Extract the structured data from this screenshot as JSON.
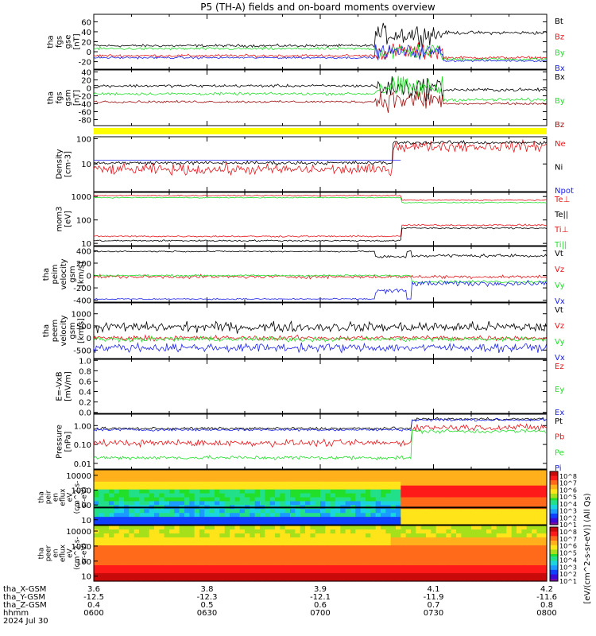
{
  "title": "P5 (TH-A) fields and on-board moments overview",
  "colors": {
    "black": "#000000",
    "red": "#e8141a",
    "green": "#22e02a",
    "blue": "#1a22e8",
    "yellow": "#ffff00",
    "darkred": "#a01010"
  },
  "chart_data": [
    {
      "type": "line",
      "panel": "fgs_gse",
      "ylabel": [
        "tha",
        "fgs",
        "gse",
        "[nT]"
      ],
      "ylim": [
        -35,
        75
      ],
      "ticks": [
        60,
        40,
        20,
        0,
        -20
      ],
      "series": [
        {
          "name": "Bt",
          "color": "black"
        },
        {
          "name": "Bz",
          "color": "red"
        },
        {
          "name": "By",
          "color": "green"
        },
        {
          "name": "Bx",
          "color": "blue"
        }
      ]
    },
    {
      "type": "line",
      "panel": "fgs_gsm",
      "ylabel": [
        "tha",
        "fgs",
        "gsm",
        "[nT]"
      ],
      "ylim": [
        -95,
        45
      ],
      "ticks": [
        40,
        20,
        0,
        -20,
        -40,
        -60,
        -80
      ],
      "series": [
        {
          "name": "Bx",
          "color": "black"
        },
        {
          "name": "By",
          "color": "green"
        },
        {
          "name": "Bz",
          "color": "darkred"
        }
      ]
    },
    {
      "type": "line",
      "panel": "density",
      "ylabel": [
        "Density",
        "[cm-3]"
      ],
      "log": true,
      "ylim": [
        0.8,
        120
      ],
      "ticks": [
        "100",
        "10"
      ],
      "series": [
        {
          "name": "Ne",
          "color": "red"
        },
        {
          "name": "Ni",
          "color": "black"
        },
        {
          "name": "Npot",
          "color": "blue"
        }
      ]
    },
    {
      "type": "line",
      "panel": "temperature",
      "ylabel": [
        "mom3",
        "[eV]"
      ],
      "log": true,
      "ylim": [
        8,
        1500
      ],
      "ticks": [
        "1000",
        "100",
        "10"
      ],
      "series": [
        {
          "name": "Te⊥",
          "color": "red"
        },
        {
          "name": "Te||",
          "color": "black"
        },
        {
          "name": "Ti⊥",
          "color": "red"
        },
        {
          "name": "Ti||",
          "color": "green"
        }
      ]
    },
    {
      "type": "line",
      "panel": "peim_velocity",
      "ylabel": [
        "tha",
        "peim",
        "velocity",
        "gsm",
        "[km/s]"
      ],
      "ylim": [
        -430,
        470
      ],
      "ticks": [
        400,
        200,
        0,
        -200,
        -400
      ],
      "series": [
        {
          "name": "Vt",
          "color": "black"
        },
        {
          "name": "Vz",
          "color": "red"
        },
        {
          "name": "Vy",
          "color": "green"
        },
        {
          "name": "Vx",
          "color": "blue"
        }
      ]
    },
    {
      "type": "line",
      "panel": "peem_velocity",
      "ylabel": [
        "tha",
        "peem",
        "velocity",
        "gsm",
        "[km/s]"
      ],
      "ylim": [
        -850,
        1450
      ],
      "ticks": [
        1000,
        500,
        0,
        -500
      ],
      "series": [
        {
          "name": "Vt",
          "color": "black"
        },
        {
          "name": "Vz",
          "color": "red"
        },
        {
          "name": "Vy",
          "color": "green"
        },
        {
          "name": "Vx",
          "color": "blue"
        }
      ]
    },
    {
      "type": "line",
      "panel": "efield",
      "ylabel": [
        "E=-VxB",
        "[mV/m]"
      ],
      "ylim": [
        -0.02,
        1.02
      ],
      "ticks": [
        "1.0",
        "0.8",
        "0.6",
        "0.4",
        "0.2",
        "0.0"
      ],
      "series": [
        {
          "name": "Ez",
          "color": "red"
        },
        {
          "name": "Ey",
          "color": "green"
        },
        {
          "name": "Ex",
          "color": "blue"
        }
      ]
    },
    {
      "type": "line",
      "panel": "pressure",
      "ylabel": [
        "Pressure",
        "[nPa]"
      ],
      "log": true,
      "ylim": [
        0.005,
        4
      ],
      "ticks": [
        "1.00",
        "0.10",
        "0.01"
      ],
      "series": [
        {
          "name": "Pt",
          "color": "black"
        },
        {
          "name": "Pb",
          "color": "red"
        },
        {
          "name": "Pe",
          "color": "green"
        },
        {
          "name": "Pi",
          "color": "blue"
        }
      ]
    },
    {
      "type": "heatmap",
      "panel": "peir_spectrogram",
      "ylabel": [
        "tha",
        "peir",
        "en",
        "eflux",
        "eV",
        "(cm^2-s-",
        "sr-eV)"
      ],
      "ticks": [
        "10000",
        "1000",
        "100",
        "10"
      ]
    },
    {
      "type": "heatmap",
      "panel": "peer_spectrogram",
      "ylabel": [
        "tha",
        "peer",
        "en",
        "eflux",
        "eV",
        "(cm^2-s-",
        "sr-eV)"
      ],
      "ticks": [
        "10000",
        "1000",
        "100",
        "10"
      ]
    }
  ],
  "colorbar": {
    "label": "[eV/(cm^2-s-sr-eV)] (All Qs)",
    "ticks_top": [
      "10^8",
      "10^7",
      "10^6",
      "10^5",
      "10^4",
      "10^3",
      "10^2",
      "10^1"
    ],
    "ticks_bottom": [
      "10^8",
      "10^7",
      "10^6",
      "10^5",
      "10^4",
      "10^3",
      "10^2",
      "10^1"
    ]
  },
  "xaxis": {
    "rows": [
      {
        "label": "tha_X-GSM",
        "values": [
          "3.6",
          "3.8",
          "3.9",
          "4.1",
          "4.2"
        ]
      },
      {
        "label": "tha_Y-GSM",
        "values": [
          "-12.5",
          "-12.3",
          "-12.1",
          "-11.9",
          "-11.6"
        ]
      },
      {
        "label": "tha_Z-GSM",
        "values": [
          "0.4",
          "0.5",
          "0.6",
          "0.7",
          "0.8"
        ]
      },
      {
        "label": "hhmm",
        "values": [
          "0600",
          "0630",
          "0700",
          "0730",
          "0800"
        ]
      }
    ],
    "date": "2024 Jul 30"
  }
}
